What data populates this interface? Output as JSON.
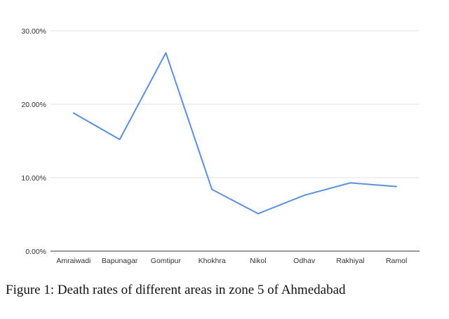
{
  "caption": "Figure 1: Death rates of different areas in zone 5 of Ahmedabad",
  "chart_data": {
    "type": "line",
    "categories": [
      "Amraiwadi",
      "Bapunagar",
      "Gomtipur",
      "Khokhra",
      "Nikol",
      "Odhav",
      "Rakhiyal",
      "Ramol"
    ],
    "series": [
      {
        "values": [
          18.8,
          15.2,
          27.0,
          8.4,
          5.1,
          7.6,
          9.3,
          8.8
        ],
        "color": "#5b8fe0"
      }
    ],
    "ylim": [
      0,
      30
    ],
    "yticks": [
      0,
      10,
      20,
      30
    ],
    "ytick_labels": [
      "0.00%",
      "10.00%",
      "20.00%",
      "30.00%"
    ],
    "grid": true,
    "legend": "none"
  }
}
